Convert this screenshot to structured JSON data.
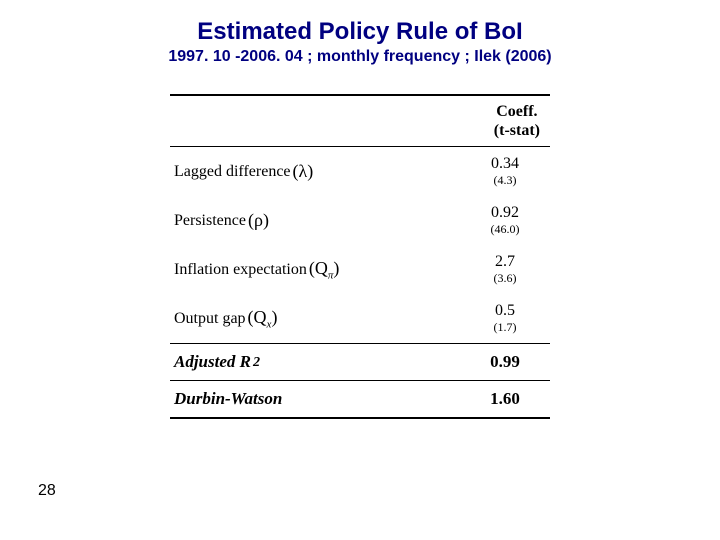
{
  "title": "Estimated Policy Rule of BoI",
  "subtitle": "1997. 10 -2006. 04  ; monthly frequency ; Ilek (2006)",
  "header": {
    "line1": "Coeff.",
    "line2": "(t-stat)"
  },
  "rows": [
    {
      "label": "Lagged difference",
      "symbol": "(λ)",
      "coeff": "0.34",
      "tstat": "(4.3)"
    },
    {
      "label": "Persistence",
      "symbol": "(ρ)",
      "coeff": "0.92",
      "tstat": "(46.0)"
    },
    {
      "label": "Inflation expectation",
      "symbol_html": "(Q<sub class='ssub'>π</sub>)",
      "coeff": "2.7",
      "tstat": "(3.6)"
    },
    {
      "label": "Output gap",
      "symbol_html": "(Q<sub class='ssub'>x</sub>)",
      "coeff": "0.5",
      "tstat": "(1.7)"
    }
  ],
  "summary": [
    {
      "label_html": "Adjusted R<sup>2</sup>",
      "value": "0.99"
    },
    {
      "label": "Durbin-Watson",
      "value": "1.60"
    }
  ],
  "pageNumber": "28",
  "colors": {
    "titleColor": "#000080",
    "background": "#ffffff",
    "rule": "#000000"
  }
}
